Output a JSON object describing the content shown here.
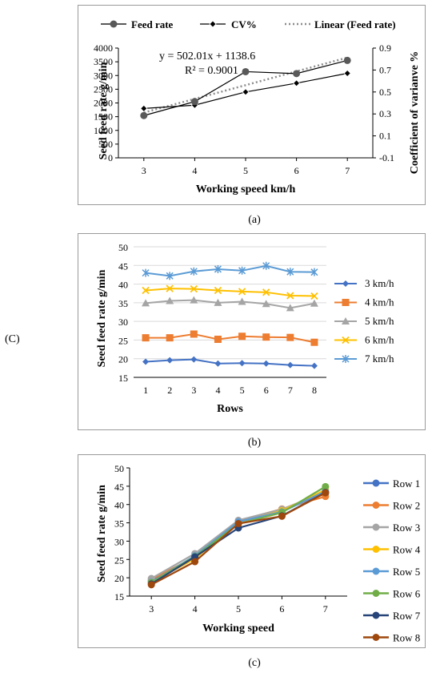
{
  "side_label": "(C)",
  "chart_data": [
    {
      "type": "line",
      "caption": "(a)",
      "xlabel": "Working speed km/h",
      "ylabel": "Seed feed rate g/min",
      "y2label": "Coefficient of varianve %",
      "x": [
        3,
        4,
        5,
        6,
        7
      ],
      "ylim": [
        0,
        4000
      ],
      "yticks": [
        0,
        500,
        1000,
        1500,
        2000,
        2500,
        3000,
        3500,
        4000
      ],
      "y2lim": [
        -0.1,
        0.9
      ],
      "y2ticks": [
        "-0.1",
        "0.1",
        "0.3",
        "0.5",
        "0.7",
        "0.9"
      ],
      "legend_position": "top",
      "series": [
        {
          "name": "Feed rate",
          "axis": "left",
          "values": [
            1540,
            2050,
            3140,
            3070,
            3550
          ],
          "color": "#595959",
          "marker": "circle"
        },
        {
          "name": "CV%",
          "axis": "right",
          "values": [
            0.35,
            0.38,
            0.5,
            0.58,
            0.67
          ],
          "color": "#000000",
          "marker": "diamond"
        },
        {
          "name": "Linear (Feed rate)",
          "axis": "left",
          "type": "trend",
          "values": [
            1650.6,
            2146.6,
            2648.6,
            3150.6,
            3652.7
          ],
          "color": "#8c8c8c"
        }
      ],
      "annotation_equation": "y = 502.01x + 1138.6",
      "annotation_r2": "R² = 0.9001"
    },
    {
      "type": "line",
      "caption": "(b)",
      "xlabel": "Rows",
      "ylabel": "Seed feed rate g/min",
      "x": [
        1,
        2,
        3,
        4,
        5,
        6,
        7,
        8
      ],
      "ylim": [
        15,
        50
      ],
      "yticks": [
        15,
        20,
        25,
        30,
        35,
        40,
        45,
        50
      ],
      "grid": true,
      "legend_position": "right",
      "series": [
        {
          "name": "3 km/h",
          "values": [
            19.2,
            19.6,
            19.8,
            18.7,
            18.8,
            18.7,
            18.3,
            18.1
          ],
          "color": "#4472c4",
          "marker": "diamond"
        },
        {
          "name": "4 km/h",
          "values": [
            25.6,
            25.6,
            26.6,
            25.2,
            26.0,
            25.8,
            25.7,
            24.4
          ],
          "color": "#ed7d31",
          "marker": "square"
        },
        {
          "name": "5 km/h",
          "values": [
            34.9,
            35.5,
            35.7,
            35.0,
            35.3,
            34.7,
            33.6,
            34.8
          ],
          "color": "#a5a5a5",
          "marker": "triangle"
        },
        {
          "name": "6 km/h",
          "values": [
            38.3,
            38.8,
            38.7,
            38.3,
            38.0,
            37.8,
            36.9,
            36.8
          ],
          "color": "#ffc000",
          "marker": "x"
        },
        {
          "name": "7 km/h",
          "values": [
            43.0,
            42.2,
            43.4,
            44.0,
            43.6,
            44.9,
            43.3,
            43.2
          ],
          "color": "#5b9bd5",
          "marker": "star"
        }
      ]
    },
    {
      "type": "line",
      "caption": "(c)",
      "xlabel": "Working speed",
      "ylabel": "Seed feed rate g/min",
      "x": [
        3,
        4,
        5,
        6,
        7
      ],
      "ylim": [
        15,
        50
      ],
      "yticks": [
        15,
        20,
        25,
        30,
        35,
        40,
        45,
        50
      ],
      "legend_position": "right",
      "series": [
        {
          "name": "Row 1",
          "values": [
            19.2,
            25.6,
            34.9,
            38.3,
            43.0
          ],
          "color": "#4472c4"
        },
        {
          "name": "Row 2",
          "values": [
            19.6,
            25.6,
            35.5,
            38.8,
            42.2
          ],
          "color": "#ed7d31"
        },
        {
          "name": "Row 3",
          "values": [
            19.8,
            26.6,
            35.7,
            38.7,
            43.4
          ],
          "color": "#a5a5a5"
        },
        {
          "name": "Row 4",
          "values": [
            18.7,
            25.2,
            35.0,
            38.3,
            44.0
          ],
          "color": "#ffc000"
        },
        {
          "name": "Row 5",
          "values": [
            18.8,
            26.0,
            35.3,
            38.0,
            43.6
          ],
          "color": "#5b9bd5"
        },
        {
          "name": "Row 6",
          "values": [
            18.7,
            25.8,
            34.7,
            37.8,
            44.9
          ],
          "color": "#70ad47"
        },
        {
          "name": "Row 7",
          "values": [
            18.3,
            25.7,
            33.6,
            36.9,
            43.3
          ],
          "color": "#264478"
        },
        {
          "name": "Row 8",
          "values": [
            18.1,
            24.4,
            34.8,
            36.8,
            43.2
          ],
          "color": "#9e480e"
        }
      ]
    }
  ]
}
